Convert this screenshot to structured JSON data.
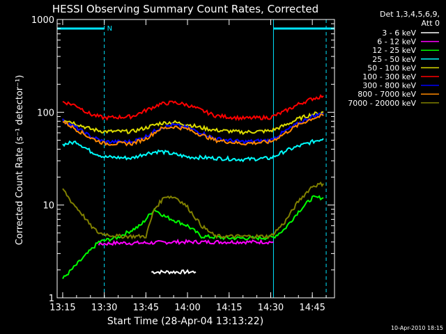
{
  "chart_data": {
    "type": "line",
    "title": "HESSI Observing Summary Count Rates, Corrected",
    "xlabel": "Start Time (28-Apr-04 13:13:22)",
    "ylabel": "Corrected Count Rate (s⁻¹ detector⁻¹)",
    "y_scale": "log",
    "ylim": [
      1,
      1000
    ],
    "xlim": [
      "13:13",
      "14:53"
    ],
    "x_ticks": [
      "13:15",
      "13:30",
      "13:45",
      "14:00",
      "14:15",
      "14:30",
      "14:45"
    ],
    "y_ticks": [
      "1",
      "10",
      "100",
      "1000"
    ],
    "legend_title": [
      "Det 1,3,4,5,6,9,",
      "Att 0"
    ],
    "legend_position": "right",
    "timestamp": "10-Apr-2010 18:15",
    "flag_labels": [
      "N"
    ],
    "night_intervals": [
      [
        "13:13",
        "13:30"
      ],
      [
        "14:31",
        "14:53"
      ]
    ],
    "marker_lines": [
      "13:30",
      "14:31",
      "14:50"
    ],
    "series": [
      {
        "name": "3 - 6 keV",
        "color": "#ffffff",
        "x": [
          "13:47",
          "13:49",
          "13:51",
          "13:53",
          "13:55",
          "13:57",
          "13:59",
          "14:01",
          "14:03"
        ],
        "y": [
          1.9,
          1.9,
          1.9,
          1.9,
          1.9,
          1.9,
          1.9,
          1.9,
          1.9
        ]
      },
      {
        "name": "6 - 12 keV",
        "color": "#ff00ff",
        "x": [
          "13:28",
          "13:35",
          "13:45",
          "13:55",
          "14:05",
          "14:15",
          "14:25",
          "14:31"
        ],
        "y": [
          3.8,
          3.9,
          3.9,
          4.0,
          4.0,
          4.0,
          4.0,
          4.0
        ]
      },
      {
        "name": "12 - 25 keV",
        "color": "#00ff00",
        "x": [
          "13:15",
          "13:28",
          "13:35",
          "13:43",
          "13:48",
          "13:52",
          "14:00",
          "14:05",
          "14:15",
          "14:25",
          "14:31",
          "14:35",
          "14:40",
          "14:45",
          "14:49"
        ],
        "y": [
          1.6,
          4.0,
          4.5,
          6.0,
          9.0,
          7.5,
          6.0,
          4.6,
          4.4,
          4.4,
          4.5,
          5.5,
          8.5,
          12.0,
          12.0
        ]
      },
      {
        "name": "25 - 50 keV",
        "color": "#00ffff",
        "x": [
          "13:15",
          "13:20",
          "13:25",
          "13:30",
          "13:40",
          "13:45",
          "13:50",
          "14:00",
          "14:10",
          "14:20",
          "14:30",
          "14:35",
          "14:40",
          "14:45",
          "14:49"
        ],
        "y": [
          45,
          48,
          38,
          33,
          32,
          36,
          38,
          33,
          32,
          31,
          32,
          38,
          43,
          48,
          52
        ]
      },
      {
        "name": "50 - 100 keV",
        "color": "#dddd00",
        "x": [
          "13:15",
          "13:20",
          "13:25",
          "13:30",
          "13:40",
          "13:45",
          "13:50",
          "13:55",
          "14:00",
          "14:05",
          "14:10",
          "14:20",
          "14:30",
          "14:35",
          "14:40",
          "14:45",
          "14:49"
        ],
        "y": [
          85,
          75,
          66,
          62,
          62,
          68,
          76,
          78,
          74,
          68,
          64,
          61,
          63,
          72,
          85,
          95,
          100
        ]
      },
      {
        "name": "100 - 300 keV",
        "color": "#ff0000",
        "x": [
          "13:15",
          "13:20",
          "13:25",
          "13:30",
          "13:40",
          "13:45",
          "13:50",
          "13:55",
          "14:00",
          "14:05",
          "14:10",
          "14:20",
          "14:30",
          "14:35",
          "14:40",
          "14:45",
          "14:49"
        ],
        "y": [
          130,
          118,
          95,
          87,
          90,
          105,
          122,
          128,
          120,
          105,
          92,
          86,
          88,
          102,
          122,
          140,
          150
        ]
      },
      {
        "name": "300 - 800 keV",
        "color": "#0000ff",
        "x": [
          "13:15",
          "13:20",
          "13:25",
          "13:30",
          "13:40",
          "13:45",
          "13:50",
          "13:55",
          "14:00",
          "14:05",
          "14:10",
          "14:20",
          "14:30",
          "14:35",
          "14:40",
          "14:45",
          "14:49"
        ],
        "y": [
          82,
          68,
          55,
          48,
          48,
          55,
          68,
          73,
          68,
          60,
          52,
          48,
          50,
          62,
          76,
          90,
          98
        ]
      },
      {
        "name": "800 - 7000 keV",
        "color": "#ff8800",
        "x": [
          "13:15",
          "13:20",
          "13:25",
          "13:30",
          "13:40",
          "13:45",
          "13:50",
          "13:55",
          "14:00",
          "14:05",
          "14:10",
          "14:20",
          "14:30",
          "14:35",
          "14:40",
          "14:45",
          "14:49"
        ],
        "y": [
          80,
          65,
          53,
          46,
          46,
          52,
          66,
          70,
          66,
          57,
          50,
          46,
          48,
          59,
          73,
          86,
          92
        ]
      },
      {
        "name": "7000 - 20000 keV",
        "color": "#808000",
        "x": [
          "13:15",
          "13:18",
          "13:22",
          "13:25",
          "13:28",
          "13:35",
          "13:45",
          "13:48",
          "13:52",
          "13:56",
          "14:00",
          "14:05",
          "14:10",
          "14:20",
          "14:30",
          "14:35",
          "14:40",
          "14:45",
          "14:49"
        ],
        "y": [
          15,
          11,
          8.0,
          6.0,
          5.0,
          4.6,
          4.6,
          9.0,
          12.5,
          12.0,
          9.5,
          6.0,
          4.6,
          4.6,
          4.6,
          6.5,
          11.0,
          16.0,
          17.0
        ]
      }
    ]
  }
}
